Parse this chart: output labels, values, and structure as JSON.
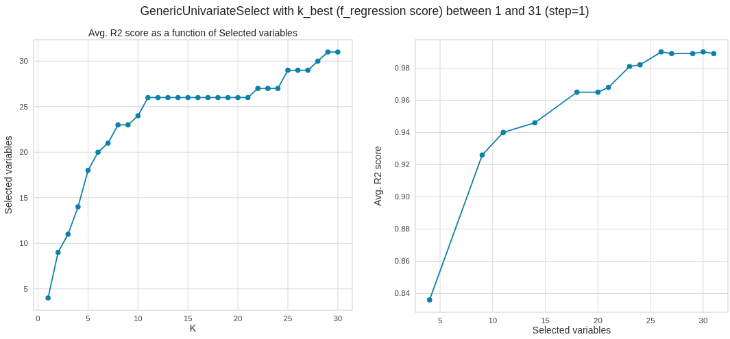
{
  "chart_data": [
    {
      "type": "line",
      "title": "GenericUnivariateSelect with k_best (f_regression score) between 1 and 31 (step=1)",
      "subtitle": "Avg. R2 score as a function of Selected variables",
      "xlabel": "K",
      "ylabel": "Selected variables",
      "series": [
        {
          "color": "#0e80ac",
          "x": [
            1,
            2,
            3,
            4,
            5,
            6,
            7,
            8,
            9,
            10,
            11,
            12,
            13,
            14,
            15,
            16,
            17,
            18,
            19,
            20,
            21,
            22,
            23,
            24,
            25,
            26,
            27,
            28,
            29,
            30
          ],
          "values": [
            4,
            9,
            11,
            14,
            18,
            20,
            21,
            23,
            23,
            24,
            26,
            26,
            26,
            26,
            26,
            26,
            26,
            26,
            26,
            26,
            26,
            27,
            27,
            27,
            29,
            29,
            29,
            30,
            31,
            31
          ]
        }
      ],
      "xlim": [
        -0.45,
        31.45
      ],
      "xticks": [
        0,
        5,
        10,
        15,
        20,
        25,
        30
      ],
      "ylim": [
        2.65,
        32.35
      ],
      "yticks": [
        5,
        10,
        15,
        20,
        25,
        30
      ],
      "grid": true,
      "marker": "circle",
      "line_style": "solid"
    },
    {
      "type": "line",
      "xlabel": "Selected variables",
      "ylabel": "Avg. R2 score",
      "series": [
        {
          "color": "#0e80ac",
          "x": [
            4,
            9,
            11,
            14,
            18,
            20,
            21,
            23,
            24,
            26,
            27,
            29,
            30,
            31
          ],
          "values": [
            0.836,
            0.926,
            0.94,
            0.946,
            0.965,
            0.965,
            0.968,
            0.981,
            0.982,
            0.99,
            0.989,
            0.989,
            0.99,
            0.989
          ]
        }
      ],
      "xlim": [
        2.65,
        32.35
      ],
      "xticks": [
        5,
        10,
        15,
        20,
        25,
        30
      ],
      "ylim": [
        0.8283,
        0.9976
      ],
      "yticks": [
        {
          "value": 0.84,
          "label": "0.84"
        },
        {
          "value": 0.86,
          "label": "0.86"
        },
        {
          "value": 0.88,
          "label": "0.88"
        },
        {
          "value": 0.9,
          "label": "0.90"
        },
        {
          "value": 0.92,
          "label": "0.92"
        },
        {
          "value": 0.94,
          "label": "0.94"
        },
        {
          "value": 0.96,
          "label": "0.96"
        },
        {
          "value": 0.98,
          "label": "0.98"
        }
      ],
      "grid": true,
      "marker": "circle",
      "line_style": "solid"
    }
  ]
}
